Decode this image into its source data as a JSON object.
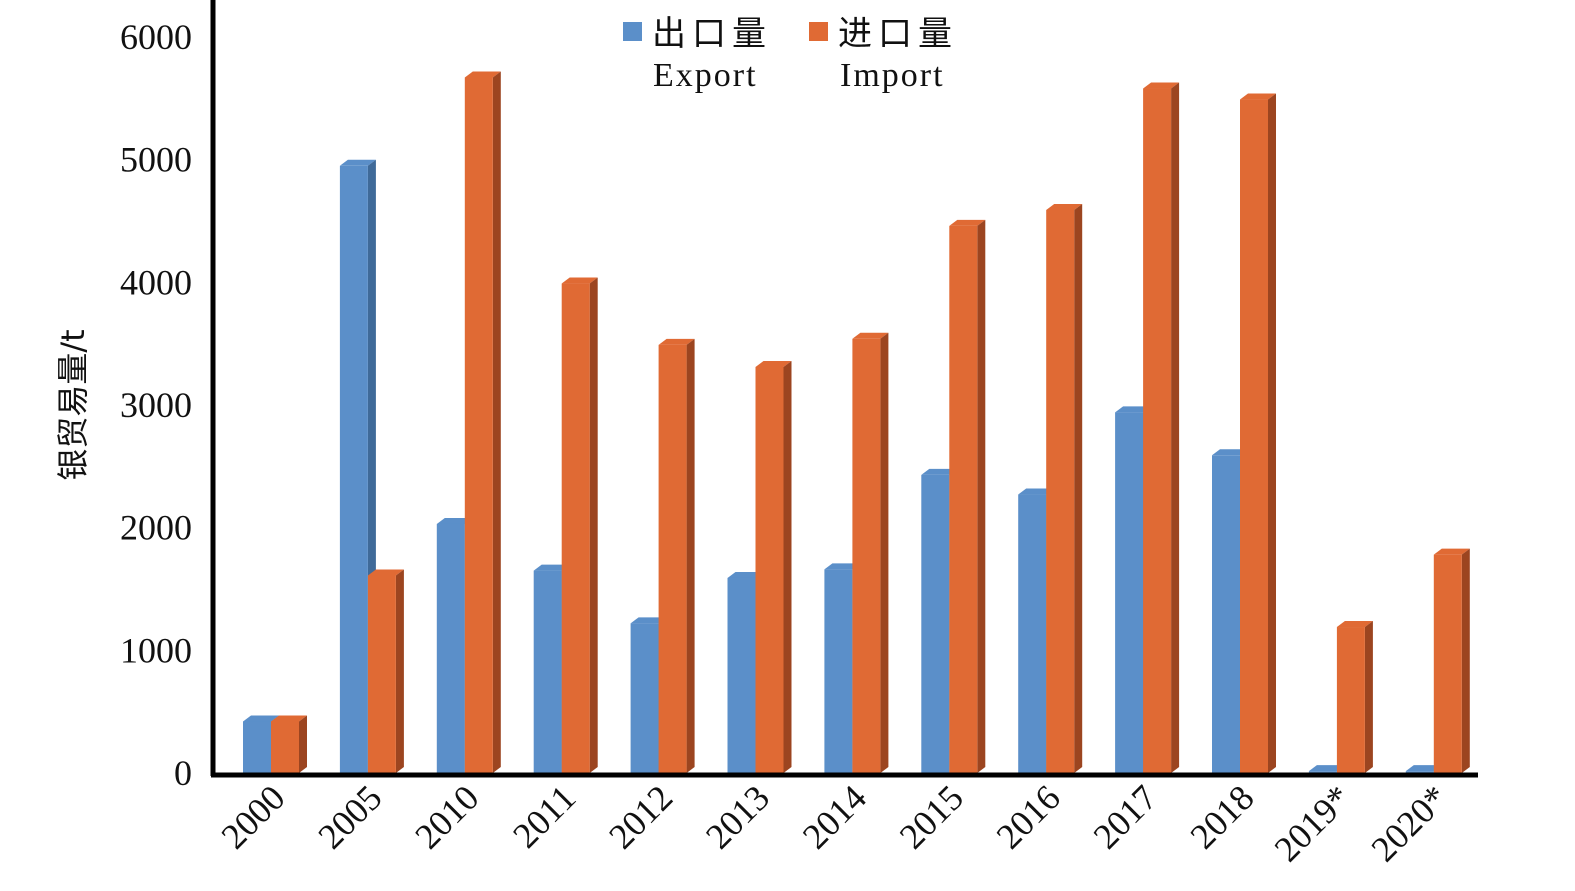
{
  "chart_data": {
    "type": "bar",
    "title": "",
    "xlabel": "",
    "ylabel": "银贸易量/t",
    "ylim": [
      0,
      6000
    ],
    "yticks": [
      0,
      1000,
      2000,
      3000,
      4000,
      5000,
      6000
    ],
    "grid": false,
    "legend_position": "top-center",
    "categories": [
      "2000",
      "2005",
      "2010",
      "2011",
      "2012",
      "2013",
      "2014",
      "2015",
      "2016",
      "2017",
      "2018",
      "2019*",
      "2020*"
    ],
    "series": [
      {
        "name": "出口量",
        "name_en": "Export",
        "color": "#5b8fc9",
        "side_color": "#3f6a99",
        "values": [
          420,
          4950,
          2030,
          1650,
          1220,
          1590,
          1660,
          2430,
          2270,
          2940,
          2590,
          15,
          15
        ]
      },
      {
        "name": "进口量",
        "name_en": "Import",
        "color": "#e06a34",
        "side_color": "#9c4520",
        "values": [
          420,
          1610,
          5670,
          3990,
          3490,
          3310,
          3540,
          4460,
          4590,
          5580,
          5490,
          1190,
          1780
        ]
      }
    ]
  }
}
